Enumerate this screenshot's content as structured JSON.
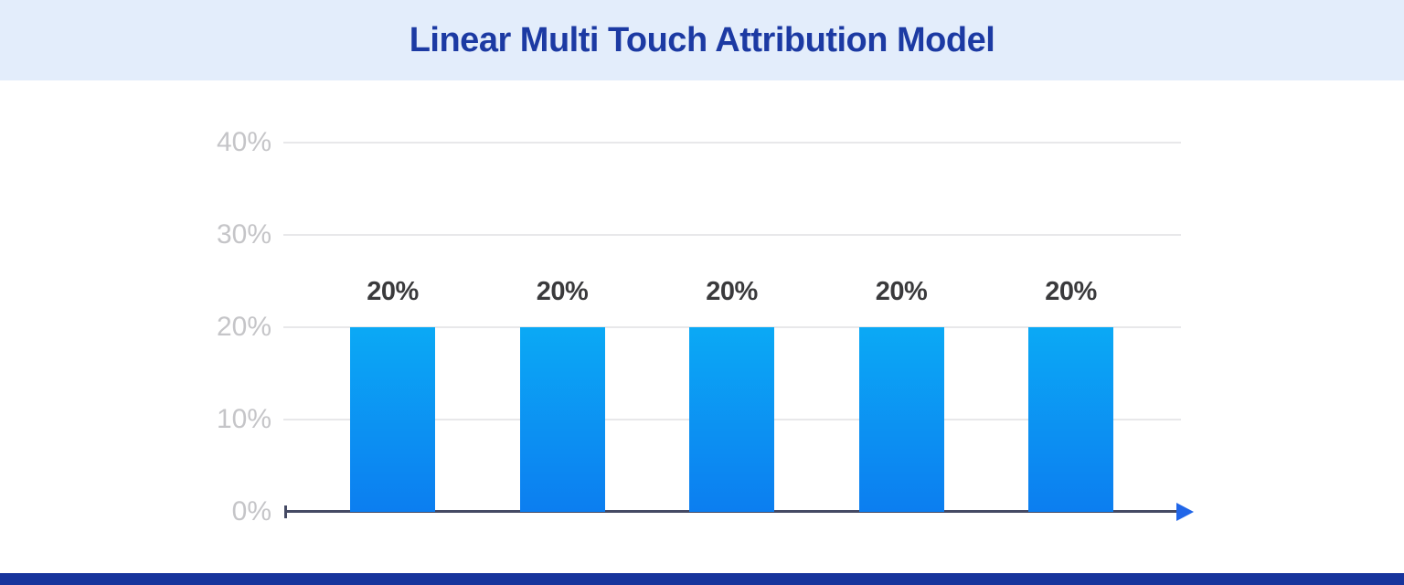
{
  "header": {
    "title": "Linear Multi Touch Attribution Model"
  },
  "chart_data": {
    "type": "bar",
    "title": "Linear Multi Touch Attribution Model",
    "categories": [
      "",
      "",
      "",
      "",
      ""
    ],
    "values": [
      20,
      20,
      20,
      20,
      20
    ],
    "value_labels": [
      "20%",
      "20%",
      "20%",
      "20%",
      "20%"
    ],
    "y_ticks": [
      {
        "value": 0,
        "label": "0%"
      },
      {
        "value": 10,
        "label": "10%"
      },
      {
        "value": 20,
        "label": "20%"
      },
      {
        "value": 30,
        "label": "30%"
      },
      {
        "value": 40,
        "label": "40%"
      }
    ],
    "ylim": [
      0,
      40
    ],
    "xlabel": "",
    "ylabel": "",
    "grid": true,
    "legend": false,
    "x_axis_arrow": true
  },
  "colors": {
    "header_background": "#E3EDFB",
    "title": "#1C3AA3",
    "bar_gradient_top": "#0BA9F5",
    "bar_gradient_bottom": "#0C7EF0",
    "axis_line": "#454A64",
    "axis_arrow": "#2166E8",
    "gridline": "#E6E6E8",
    "y_tick_label": "#C5C5C8",
    "value_label": "#3A3A3C",
    "footer_bar": "#17349C"
  }
}
